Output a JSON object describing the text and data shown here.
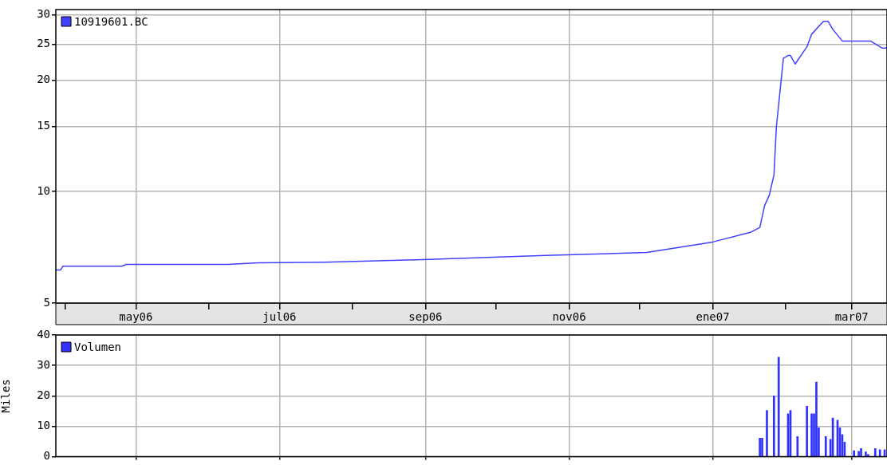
{
  "chart_data": [
    {
      "type": "line",
      "x": [
        "2006-03-28",
        "2006-03-30",
        "2006-03-31",
        "2006-04-25",
        "2006-04-27",
        "2006-06-09",
        "2006-06-22",
        "2006-07-20",
        "2006-08-31",
        "2006-10-22",
        "2006-12-04",
        "2007-01-01",
        "2007-01-17",
        "2007-01-21",
        "2007-01-23",
        "2007-01-25",
        "2007-01-27",
        "2007-01-28",
        "2007-01-31",
        "2007-02-02",
        "2007-02-03",
        "2007-02-05",
        "2007-02-10",
        "2007-02-12",
        "2007-02-17",
        "2007-02-19",
        "2007-02-21",
        "2007-02-25",
        "2007-03-09",
        "2007-03-14",
        "2007-03-16"
      ],
      "series": [
        {
          "name": "10919601.BC",
          "color": "#4040ff",
          "values": [
            6.14,
            6.14,
            6.29,
            6.29,
            6.36,
            6.36,
            6.42,
            6.45,
            6.55,
            6.72,
            6.85,
            7.31,
            7.76,
            8.0,
            9.16,
            9.77,
            11.1,
            14.9,
            22.9,
            23.3,
            23.3,
            22.1,
            24.6,
            26.6,
            28.8,
            28.8,
            27.4,
            25.5,
            25.5,
            24.4,
            24.4
          ]
        }
      ],
      "log": true,
      "ylim": [
        5,
        31
      ],
      "yticks": [
        5,
        10,
        15,
        20,
        25,
        30
      ],
      "xlim": [
        "2006-03-28",
        "2007-03-16"
      ],
      "xticks": [
        {
          "value": "2006-04",
          "label": null
        },
        {
          "value": "2006-05",
          "label": "may06"
        },
        {
          "value": "2006-06",
          "label": null
        },
        {
          "value": "2006-07",
          "label": "jul06"
        },
        {
          "value": "2006-08",
          "label": null
        },
        {
          "value": "2006-09",
          "label": "sep06"
        },
        {
          "value": "2006-10",
          "label": null
        },
        {
          "value": "2006-11",
          "label": "nov06"
        },
        {
          "value": "2006-12",
          "label": null
        },
        {
          "value": "2007-01",
          "label": "ene07"
        },
        {
          "value": "2007-02",
          "label": null
        },
        {
          "value": "2007-03",
          "label": "mar07"
        }
      ],
      "grid": true,
      "legend": "top left"
    },
    {
      "type": "bar",
      "x": [
        "2007-01-21",
        "2007-01-22",
        "2007-01-24",
        "2007-01-27",
        "2007-01-29",
        "2007-02-02",
        "2007-02-03",
        "2007-02-06",
        "2007-02-10",
        "2007-02-12",
        "2007-02-13",
        "2007-02-14",
        "2007-02-15",
        "2007-02-18",
        "2007-02-20",
        "2007-02-21",
        "2007-02-23",
        "2007-02-24",
        "2007-02-25",
        "2007-02-26",
        "2007-03-02",
        "2007-03-04",
        "2007-03-05",
        "2007-03-07",
        "2007-03-08",
        "2007-03-11",
        "2007-03-13",
        "2007-03-15"
      ],
      "series": [
        {
          "name": "Volumen",
          "color": "#3030ff",
          "values": [
            6.1,
            6.1,
            15.2,
            20,
            32.7,
            14.1,
            15.2,
            6.6,
            16.6,
            14.1,
            14.1,
            24.5,
            9.5,
            6.6,
            5.7,
            12.7,
            12,
            9.5,
            7.3,
            4.8,
            2,
            1.8,
            2.7,
            1.6,
            0.7,
            2.7,
            2.3,
            2.3
          ]
        }
      ],
      "ylabel": "Miles",
      "ylim": [
        0,
        40
      ],
      "yticks": [
        0,
        10,
        20,
        30,
        40
      ],
      "xlim": [
        "2006-03-28",
        "2007-03-16"
      ],
      "xticks": [
        {
          "value": "2006-05",
          "label": null
        },
        {
          "value": "2006-07",
          "label": null
        },
        {
          "value": "2006-09",
          "label": null
        },
        {
          "value": "2006-11",
          "label": null
        },
        {
          "value": "2007-01",
          "label": null
        },
        {
          "value": "2007-03",
          "label": null
        }
      ],
      "tick_labels": "y",
      "grid": true,
      "legend": "top left"
    }
  ]
}
